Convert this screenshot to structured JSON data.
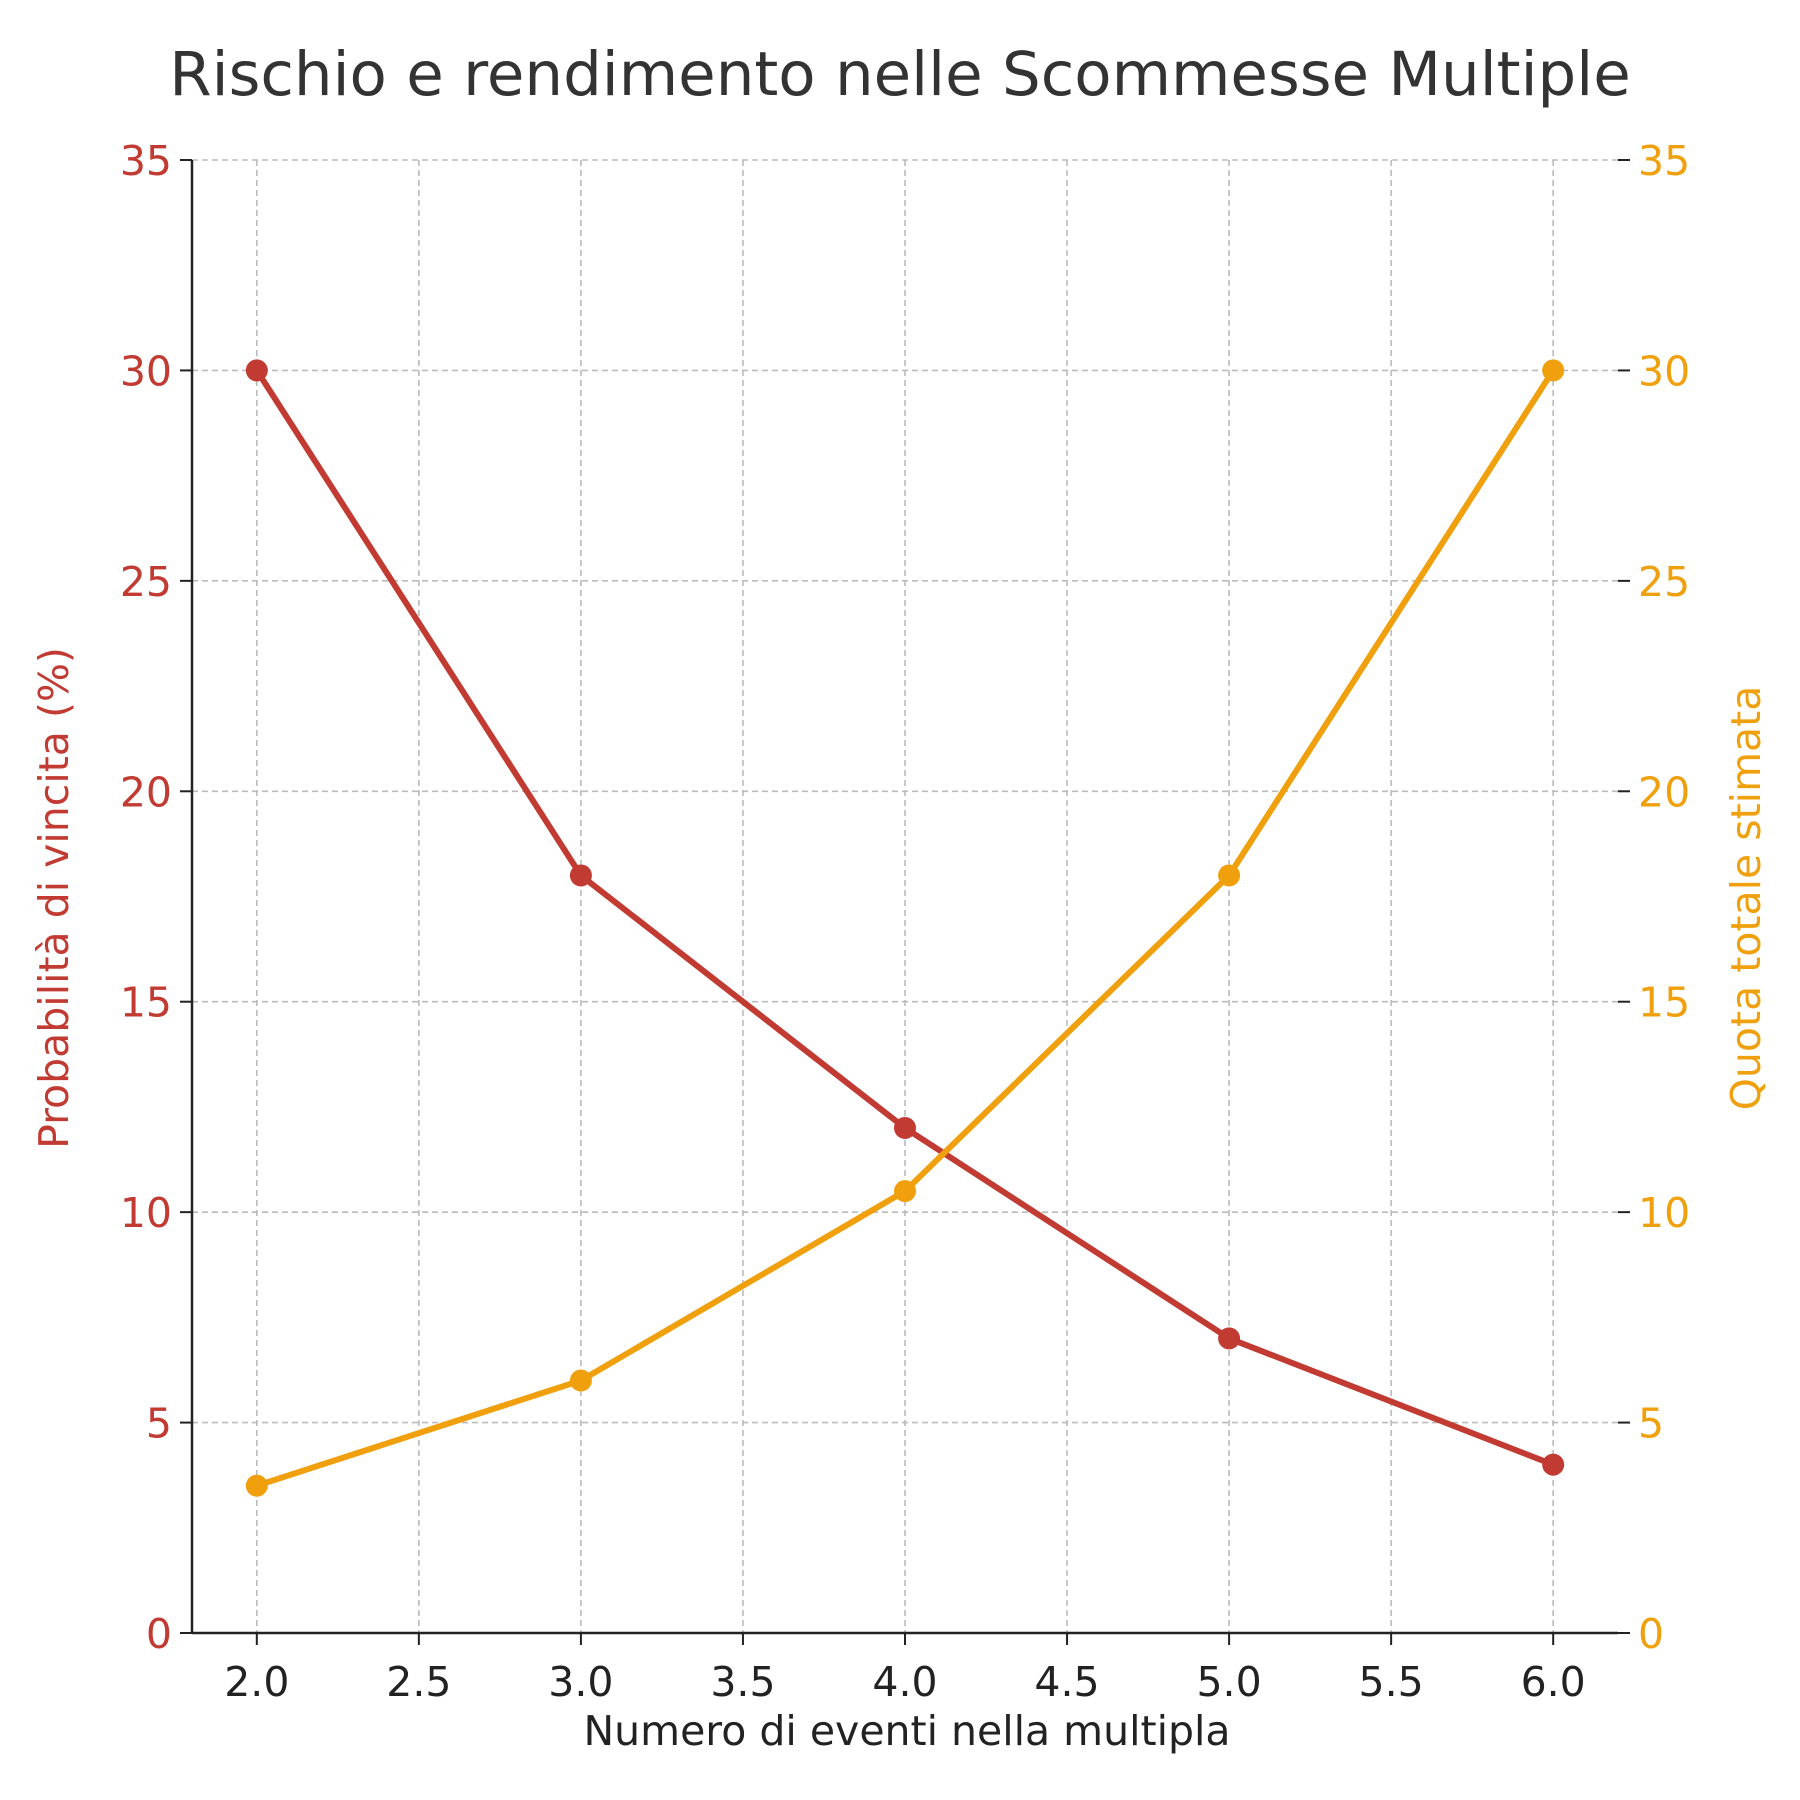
{
  "chart_data": {
    "type": "line",
    "title": "Rischio e rendimento nelle Scommesse Multiple",
    "xlabel": "Numero di eventi nella multipla",
    "ylabel_left": "Probabilità di vincita (%)",
    "ylabel_right": "Quota totale stimata",
    "x": [
      2,
      3,
      4,
      5,
      6
    ],
    "xlim": [
      1.8,
      6.2
    ],
    "x_ticks": [
      "2.0",
      "2.5",
      "3.0",
      "3.5",
      "4.0",
      "4.5",
      "5.0",
      "5.5",
      "6.0"
    ],
    "ylim_left": [
      0,
      35
    ],
    "ylim_right": [
      0,
      35
    ],
    "y_ticks_left": [
      "0",
      "5",
      "10",
      "15",
      "20",
      "25",
      "30",
      "35"
    ],
    "y_ticks_right": [
      "0",
      "5",
      "10",
      "15",
      "20",
      "25",
      "30",
      "35"
    ],
    "grid": true,
    "series": [
      {
        "axis": "left",
        "color": "#c23b33",
        "values": [
          30,
          18,
          12,
          7,
          4
        ]
      },
      {
        "axis": "right",
        "color": "#f0a00c",
        "values": [
          3.5,
          6,
          10.5,
          18,
          30
        ]
      }
    ],
    "colors": {
      "left_axis": "#c23b33",
      "right_axis": "#f0a00c",
      "x_axis_text": "#222222",
      "grid": "#bbbbbb"
    }
  }
}
